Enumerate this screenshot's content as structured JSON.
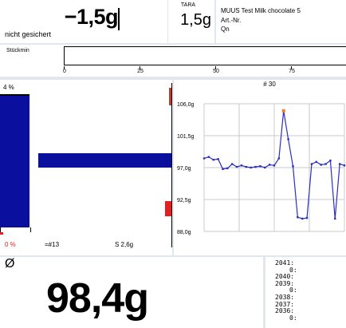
{
  "weight": {
    "value": "−1,5g",
    "status": "nicht gesichert"
  },
  "tara": {
    "label": "TARA",
    "value": "1,5g"
  },
  "product": {
    "name": "MUUS Test Milk chocolate 5",
    "article": "Art.-Nr.",
    "qn": "Qn"
  },
  "count": {
    "label": "Stückmin",
    "ticks": [
      "0",
      "25",
      "50",
      "75"
    ]
  },
  "bars": {
    "percent": "4 %",
    "neg_percent": "0 %",
    "n_label": "=#13",
    "s_label": "S 2,6g"
  },
  "chart": {
    "title": "# 30",
    "ylabels": [
      "106,0g",
      "101,5g",
      "97,0g",
      "92,5g",
      "88,0g"
    ]
  },
  "chart_data": {
    "type": "line",
    "title": "# 30",
    "ylabels": [
      "106,0g",
      "101,5g",
      "97,0g",
      "92,5g",
      "88,0g"
    ],
    "ylim": [
      88.0,
      106.0
    ],
    "grid": true,
    "series": [
      {
        "values": [
          98.3,
          98.5,
          98.1,
          98.2,
          96.8,
          96.9,
          97.5,
          97.1,
          97.3,
          97.1,
          97.0,
          97.1,
          97.2,
          97.0,
          97.4,
          97.3,
          98.3,
          105.0,
          101.0,
          97.2,
          90.0,
          89.8,
          89.9,
          97.5,
          97.8,
          97.4,
          97.5,
          98.0,
          89.8,
          97.5,
          97.3
        ]
      }
    ],
    "highlight_index": 17
  },
  "avg": {
    "symbol": "Ø",
    "value": "98,4g"
  },
  "history": [
    {
      "label": "2041:",
      "value": ""
    },
    {
      "label": "",
      "value": "0:"
    },
    {
      "label": "2040:",
      "value": ""
    },
    {
      "label": "2039:",
      "value": ""
    },
    {
      "label": "",
      "value": "0:"
    },
    {
      "label": "2038:",
      "value": ""
    },
    {
      "label": "2037:",
      "value": ""
    },
    {
      "label": "2036:",
      "value": ""
    },
    {
      "label": "",
      "value": "0:"
    }
  ],
  "colors": {
    "bar_blue": "#0b0f9e",
    "line_blue": "#2b2fbf",
    "accent_red": "#e41f1f",
    "marker_orange": "#f08030"
  }
}
